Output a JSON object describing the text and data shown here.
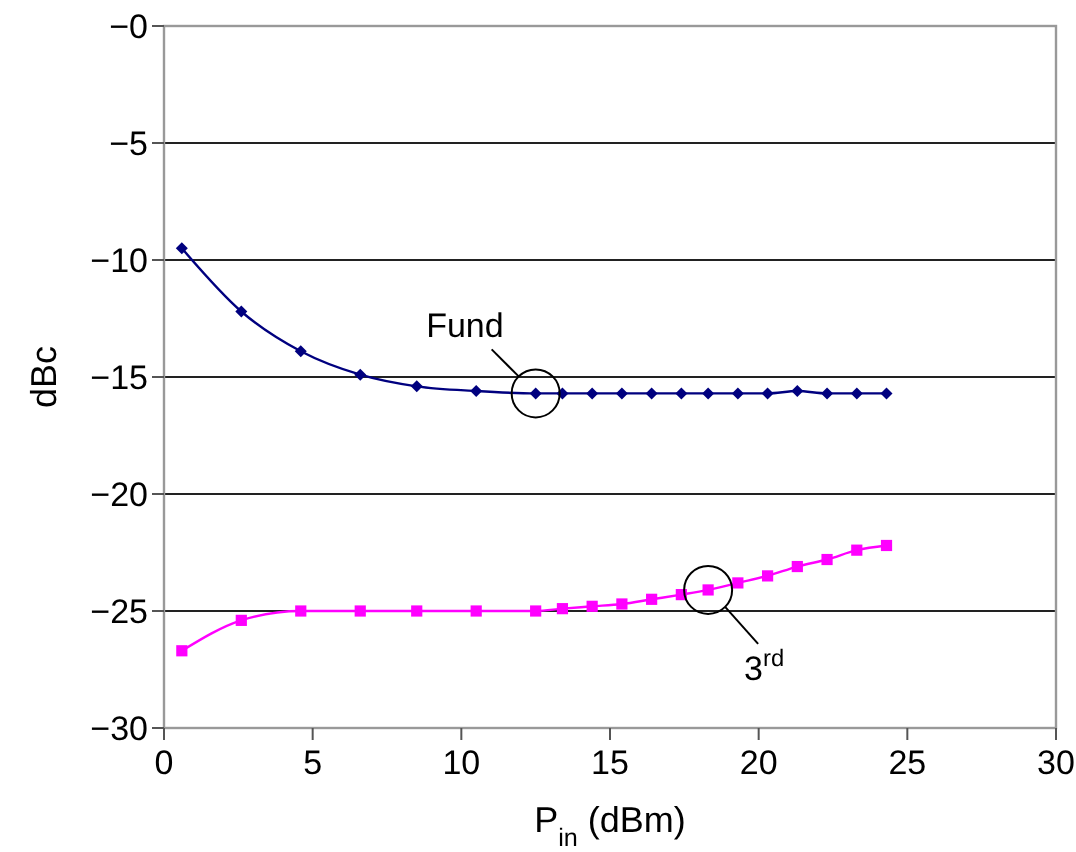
{
  "chart_data": {
    "type": "line",
    "xlabel": "P$_{in}$ (dBm)",
    "ylabel": "dBc",
    "xlim": [
      0,
      30
    ],
    "xticks": [
      0,
      5,
      10,
      15,
      20,
      25,
      30
    ],
    "ylim": [
      -30,
      0
    ],
    "yticks": [
      {
        "value": -30,
        "label": "−30"
      },
      {
        "value": -25,
        "label": "−25"
      },
      {
        "value": -20,
        "label": "−20"
      },
      {
        "value": -15,
        "label": "−15"
      },
      {
        "value": -10,
        "label": "−10"
      },
      {
        "value": -5,
        "label": "−5"
      },
      {
        "value": 0,
        "label": "−0"
      }
    ],
    "grid": "y",
    "line_style": "solid",
    "series": [
      {
        "color": "#00007f",
        "marker": "diamond",
        "x": [
          0.6,
          2.6,
          4.6,
          6.6,
          8.5,
          10.5,
          12.5,
          13.4,
          14.4,
          15.4,
          16.4,
          17.4,
          18.3,
          19.3,
          20.3,
          21.3,
          22.3,
          23.3,
          24.3
        ],
        "values": [
          -9.5,
          -12.2,
          -13.9,
          -14.9,
          -15.4,
          -15.6,
          -15.7,
          -15.7,
          -15.7,
          -15.7,
          -15.7,
          -15.7,
          -15.7,
          -15.7,
          -15.7,
          -15.6,
          -15.7,
          -15.7,
          -15.7
        ]
      },
      {
        "color": "#ff00ff",
        "marker": "square",
        "x": [
          0.6,
          2.6,
          4.6,
          6.6,
          8.5,
          10.5,
          12.5,
          13.4,
          14.4,
          15.4,
          16.4,
          17.4,
          18.3,
          19.3,
          20.3,
          21.3,
          22.3,
          23.3,
          24.3
        ],
        "values": [
          -26.7,
          -25.4,
          -25.0,
          -25.0,
          -25.0,
          -25.0,
          -25.0,
          -24.9,
          -24.8,
          -24.7,
          -24.5,
          -24.3,
          -24.1,
          -23.8,
          -23.5,
          -23.1,
          -22.8,
          -22.4,
          -22.2
        ]
      }
    ],
    "annotations": [
      {
        "text": "Fund",
        "x": 12.5,
        "y": -15.7
      },
      {
        "text": "3$^{rd}$",
        "x": 18.3,
        "y": -24.1
      }
    ]
  }
}
